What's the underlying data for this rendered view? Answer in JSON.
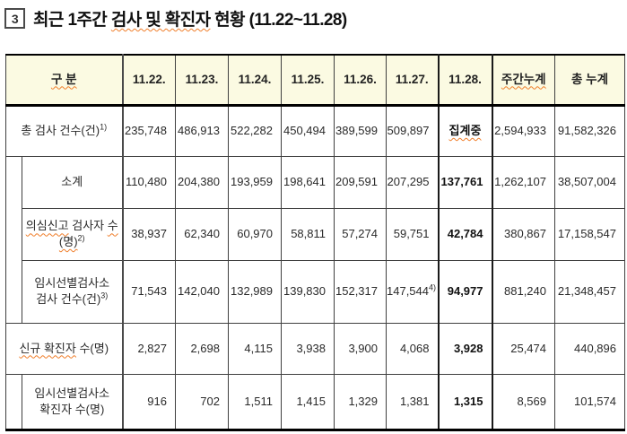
{
  "title": {
    "number": "3",
    "prefix": "최근 1주간 ",
    "underlined": "검사 및 확진자",
    "suffix": " 현황 ",
    "range": "(11.22~11.28)"
  },
  "table": {
    "headers": [
      {
        "t": "구 분",
        "sq": true
      },
      {
        "t": "11.22."
      },
      {
        "t": "11.23."
      },
      {
        "t": "11.24."
      },
      {
        "t": "11.25."
      },
      {
        "t": "11.26."
      },
      {
        "t": "11.27."
      },
      {
        "t": "11.28."
      },
      {
        "t": "주간누계",
        "sq": true
      },
      {
        "t": "총 누계"
      }
    ],
    "rows": [
      {
        "indent": false,
        "label": {
          "parts": [
            {
              "t": "총 검사 건수(건)"
            }
          ],
          "sup": "1)"
        },
        "values": [
          "235,748",
          "486,913",
          "522,282",
          "450,494",
          "389,599",
          "509,897",
          {
            "t": "집계중",
            "sq": true,
            "center": true
          },
          "2,594,933",
          "91,582,326"
        ]
      },
      {
        "indent": true,
        "label": {
          "parts": [
            {
              "t": "소계"
            }
          ]
        },
        "values": [
          "110,480",
          "204,380",
          "193,959",
          "198,641",
          "209,591",
          "207,295",
          "137,761",
          "1,262,107",
          "38,507,004"
        ]
      },
      {
        "indent": true,
        "label": {
          "parts": [
            {
              "t": "의심신고",
              "sq": true
            },
            {
              "t": " 검사자 "
            },
            {
              "t": "수(명)",
              "sq": true
            }
          ],
          "sup": "2)"
        },
        "values": [
          "38,937",
          "62,340",
          "60,970",
          "58,811",
          "57,274",
          "59,751",
          "42,784",
          "380,867",
          "17,158,547"
        ]
      },
      {
        "indent": true,
        "label": {
          "parts": [
            {
              "t": "임시선별검사소\n검사 건수(건)"
            }
          ],
          "sup": "3)"
        },
        "values": [
          "71,543",
          "142,040",
          "132,989",
          "139,830",
          "152,317",
          {
            "t": "147,544",
            "sup": "4)"
          },
          "94,977",
          "881,240",
          "21,348,457"
        ]
      },
      {
        "indent": false,
        "label": {
          "parts": [
            {
              "t": "신규 확진자",
              "sq": true
            },
            {
              "t": " 수(명)"
            }
          ]
        },
        "values": [
          "2,827",
          "2,698",
          "4,115",
          "3,938",
          "3,900",
          "4,068",
          "3,928",
          "25,474",
          "440,896"
        ]
      },
      {
        "indent": true,
        "label": {
          "parts": [
            {
              "t": "임시선별검사소\n확진자 수(명)"
            }
          ]
        },
        "values": [
          "916",
          "702",
          "1,511",
          "1,415",
          "1,329",
          "1,381",
          "1,315",
          "8,569",
          "101,574"
        ]
      }
    ]
  }
}
